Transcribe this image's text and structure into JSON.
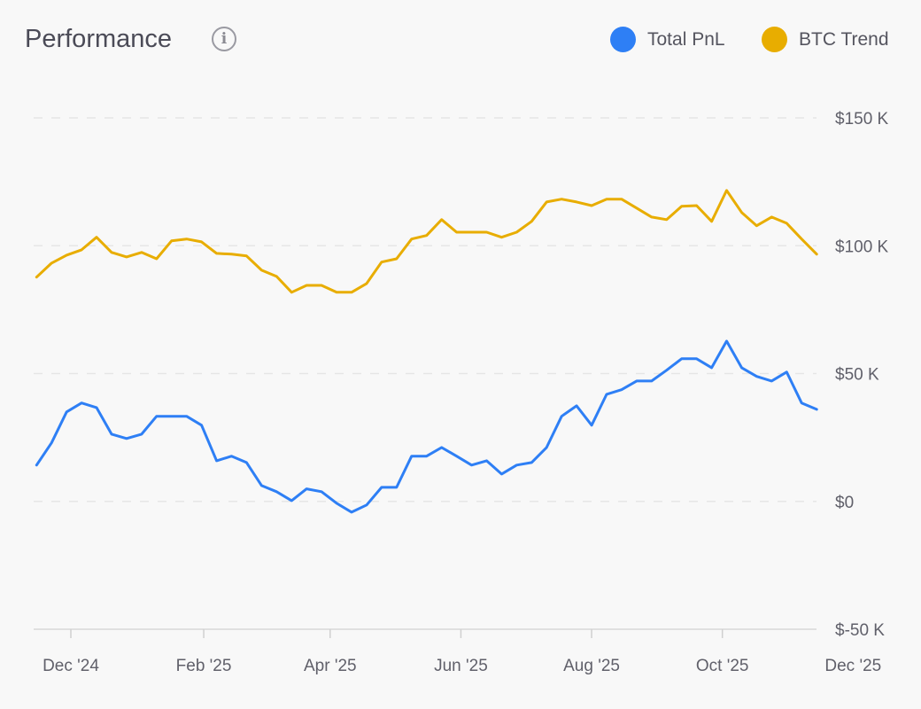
{
  "header": {
    "title": "Performance",
    "info_icon": "info-icon"
  },
  "legend": [
    {
      "label": "Total PnL",
      "color": "#2e7ff5"
    },
    {
      "label": "BTC Trend",
      "color": "#e8ad00"
    }
  ],
  "chart_data": {
    "type": "line",
    "title": "Performance",
    "grid": true,
    "legend_position": "top-right",
    "y_axis_side": "right",
    "ylim": [
      -50000,
      150000
    ],
    "y_ticks": [
      {
        "value": 150000,
        "label": "$150 K"
      },
      {
        "value": 100000,
        "label": "$100 K"
      },
      {
        "value": 50000,
        "label": "$50 K"
      },
      {
        "value": 0,
        "label": "$0"
      },
      {
        "value": -50000,
        "label": "$-50 K"
      }
    ],
    "x_ticks": [
      {
        "date": "2024-12-01",
        "label": "Dec '24"
      },
      {
        "date": "2025-02-01",
        "label": "Feb '25"
      },
      {
        "date": "2025-04-01",
        "label": "Apr '25"
      },
      {
        "date": "2025-06-01",
        "label": "Jun '25"
      },
      {
        "date": "2025-08-01",
        "label": "Aug '25"
      },
      {
        "date": "2025-10-01",
        "label": "Oct '25"
      },
      {
        "date": "2025-12-01",
        "label": "Dec '25"
      }
    ],
    "x": [
      "2024-11-15",
      "2024-11-22",
      "2024-11-29",
      "2024-12-06",
      "2024-12-13",
      "2024-12-20",
      "2024-12-27",
      "2025-01-03",
      "2025-01-10",
      "2025-01-17",
      "2025-01-24",
      "2025-01-31",
      "2025-02-07",
      "2025-02-14",
      "2025-02-21",
      "2025-02-28",
      "2025-03-07",
      "2025-03-14",
      "2025-03-21",
      "2025-03-28",
      "2025-04-04",
      "2025-04-11",
      "2025-04-18",
      "2025-04-25",
      "2025-05-02",
      "2025-05-09",
      "2025-05-16",
      "2025-05-23",
      "2025-05-30",
      "2025-06-06",
      "2025-06-13",
      "2025-06-20",
      "2025-06-27",
      "2025-07-04",
      "2025-07-11",
      "2025-07-18",
      "2025-07-25",
      "2025-08-01",
      "2025-08-08",
      "2025-08-15",
      "2025-08-22",
      "2025-08-29",
      "2025-09-05",
      "2025-09-12",
      "2025-09-19",
      "2025-09-26",
      "2025-10-03",
      "2025-10-10",
      "2025-10-17",
      "2025-10-24",
      "2025-10-31",
      "2025-11-07",
      "2025-11-14"
    ],
    "series": [
      {
        "name": "Total PnL",
        "color": "#2e7ff5",
        "values": [
          14200,
          22900,
          35000,
          38500,
          36700,
          26300,
          24600,
          26300,
          33300,
          33300,
          33300,
          29800,
          15900,
          17700,
          15200,
          6200,
          3800,
          300,
          4900,
          3800,
          -700,
          -4200,
          -1400,
          5500,
          5500,
          17700,
          17700,
          21100,
          17700,
          14200,
          15900,
          10700,
          14200,
          15200,
          21100,
          33300,
          37400,
          29800,
          41900,
          43700,
          47100,
          47100,
          51300,
          55800,
          55800,
          52300,
          62700,
          52300,
          48900,
          47100,
          50600,
          38500,
          36000
        ]
      },
      {
        "name": "BTC Trend",
        "color": "#e8ad00",
        "values": [
          87700,
          93200,
          96300,
          98400,
          103300,
          97400,
          95600,
          97400,
          94900,
          101900,
          102600,
          101500,
          97000,
          96700,
          96000,
          90400,
          88000,
          81800,
          84500,
          84500,
          81800,
          81800,
          85200,
          93600,
          94900,
          102600,
          104000,
          110200,
          105300,
          105300,
          105300,
          103300,
          105300,
          109500,
          117100,
          118200,
          117100,
          115700,
          118200,
          118200,
          114700,
          111200,
          110200,
          115400,
          115700,
          109500,
          121600,
          113000,
          107800,
          111200,
          108800,
          102600,
          96700
        ]
      }
    ]
  }
}
